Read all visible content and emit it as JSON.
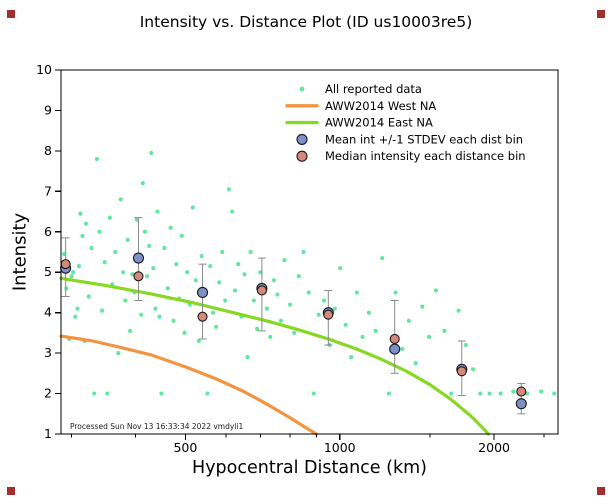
{
  "footer": "Processed Sun Nov 13 16:33:34 2022 vmdyli1",
  "colors": {
    "scatter": "#62e7a1",
    "west": "#f29440",
    "east": "#86d822",
    "mean": "#7e90c8",
    "median": "#d4897c",
    "errbar": "#8a8a8a",
    "axis": "#000000",
    "corner": "#a03030"
  },
  "chart_data": {
    "type": "scatter",
    "title": "Intensity vs. Distance Plot (ID us10003re5)",
    "xlabel": "Hypocentral Distance (km)",
    "ylabel": "Intensity",
    "xscale": "log",
    "yscale": "linear",
    "xlim": [
      286,
      2665
    ],
    "ylim": [
      1,
      10
    ],
    "xticks": [
      {
        "value": 500,
        "label": "500"
      },
      {
        "value": 1000,
        "label": "1000"
      },
      {
        "value": 2000,
        "label": "2000"
      }
    ],
    "xticks_minor": [
      300,
      400,
      600,
      700,
      800,
      900,
      1500,
      2500
    ],
    "yticks": [
      1,
      2,
      3,
      4,
      5,
      6,
      7,
      8,
      9,
      10
    ],
    "grid": false,
    "legend_position": "upper center",
    "series": [
      {
        "name": "All reported data",
        "type": "scatter",
        "marker": "dot",
        "color_key": "scatter",
        "points": [
          [
            290,
            5.45
          ],
          [
            293,
            4.6
          ],
          [
            297,
            3.35
          ],
          [
            300,
            4.9
          ],
          [
            302,
            5.0
          ],
          [
            305,
            3.9
          ],
          [
            308,
            4.1
          ],
          [
            310,
            5.15
          ],
          [
            312,
            6.45
          ],
          [
            315,
            5.9
          ],
          [
            318,
            3.3
          ],
          [
            320,
            6.2
          ],
          [
            324,
            4.4
          ],
          [
            328,
            5.6
          ],
          [
            332,
            2.0
          ],
          [
            336,
            7.8
          ],
          [
            340,
            6.0
          ],
          [
            344,
            4.05
          ],
          [
            348,
            5.25
          ],
          [
            352,
            2.0
          ],
          [
            356,
            6.35
          ],
          [
            360,
            4.7
          ],
          [
            365,
            5.5
          ],
          [
            370,
            3.0
          ],
          [
            374,
            6.8
          ],
          [
            378,
            5.0
          ],
          [
            382,
            4.3
          ],
          [
            386,
            5.8
          ],
          [
            390,
            3.55
          ],
          [
            394,
            4.95
          ],
          [
            398,
            4.5
          ],
          [
            402,
            6.3
          ],
          [
            406,
            5.3
          ],
          [
            410,
            3.95
          ],
          [
            413,
            7.2
          ],
          [
            417,
            6.0
          ],
          [
            421,
            4.9
          ],
          [
            425,
            5.65
          ],
          [
            429,
            7.95
          ],
          [
            433,
            5.1
          ],
          [
            437,
            4.1
          ],
          [
            441,
            6.5
          ],
          [
            445,
            3.9
          ],
          [
            449,
            2.0
          ],
          [
            455,
            5.6
          ],
          [
            462,
            4.6
          ],
          [
            468,
            6.1
          ],
          [
            474,
            3.8
          ],
          [
            480,
            5.2
          ],
          [
            486,
            4.35
          ],
          [
            492,
            5.9
          ],
          [
            498,
            3.5
          ],
          [
            504,
            5.0
          ],
          [
            510,
            4.2
          ],
          [
            517,
            6.6
          ],
          [
            524,
            4.8
          ],
          [
            531,
            3.3
          ],
          [
            538,
            5.4
          ],
          [
            545,
            4.45
          ],
          [
            552,
            2.0
          ],
          [
            559,
            5.15
          ],
          [
            566,
            4.0
          ],
          [
            574,
            3.65
          ],
          [
            582,
            4.75
          ],
          [
            590,
            5.5
          ],
          [
            598,
            4.3
          ],
          [
            608,
            7.05
          ],
          [
            617,
            6.5
          ],
          [
            625,
            4.55
          ],
          [
            634,
            5.2
          ],
          [
            643,
            3.9
          ],
          [
            652,
            4.95
          ],
          [
            661,
            2.9
          ],
          [
            670,
            5.5
          ],
          [
            680,
            4.3
          ],
          [
            690,
            3.6
          ],
          [
            700,
            5.0
          ],
          [
            710,
            4.6
          ],
          [
            721,
            4.1
          ],
          [
            732,
            3.4
          ],
          [
            744,
            4.8
          ],
          [
            756,
            4.45
          ],
          [
            768,
            3.8
          ],
          [
            780,
            5.3
          ],
          [
            800,
            4.2
          ],
          [
            815,
            3.5
          ],
          [
            832,
            4.9
          ],
          [
            850,
            5.5
          ],
          [
            870,
            4.5
          ],
          [
            890,
            2.0
          ],
          [
            910,
            3.95
          ],
          [
            932,
            4.3
          ],
          [
            955,
            3.2
          ],
          [
            978,
            4.1
          ],
          [
            1002,
            5.1
          ],
          [
            1027,
            3.7
          ],
          [
            1053,
            2.9
          ],
          [
            1080,
            4.5
          ],
          [
            1108,
            3.4
          ],
          [
            1140,
            4.0
          ],
          [
            1175,
            3.55
          ],
          [
            1210,
            5.35
          ],
          [
            1247,
            2.0
          ],
          [
            1285,
            4.5
          ],
          [
            1324,
            3.1
          ],
          [
            1364,
            3.8
          ],
          [
            1406,
            2.75
          ],
          [
            1449,
            4.15
          ],
          [
            1493,
            3.4
          ],
          [
            1540,
            4.55
          ],
          [
            1600,
            3.55
          ],
          [
            1650,
            2.0
          ],
          [
            1705,
            4.05
          ],
          [
            1762,
            3.2
          ],
          [
            1820,
            2.6
          ],
          [
            1880,
            2.0
          ],
          [
            1960,
            2.0
          ],
          [
            2060,
            2.0
          ],
          [
            2180,
            2.05
          ],
          [
            2320,
            2.0
          ],
          [
            2470,
            2.05
          ],
          [
            2620,
            2.0
          ]
        ]
      },
      {
        "name": "AWW2014 West NA",
        "type": "line",
        "color_key": "west",
        "points": [
          [
            286,
            3.42
          ],
          [
            330,
            3.3
          ],
          [
            380,
            3.12
          ],
          [
            430,
            2.95
          ],
          [
            500,
            2.66
          ],
          [
            570,
            2.38
          ],
          [
            650,
            2.05
          ],
          [
            730,
            1.7
          ],
          [
            800,
            1.4
          ],
          [
            860,
            1.15
          ],
          [
            900,
            1.0
          ]
        ]
      },
      {
        "name": "AWW2014 East NA",
        "type": "line",
        "color_key": "east",
        "points": [
          [
            286,
            4.85
          ],
          [
            350,
            4.67
          ],
          [
            430,
            4.46
          ],
          [
            520,
            4.24
          ],
          [
            620,
            4.0
          ],
          [
            720,
            3.8
          ],
          [
            830,
            3.58
          ],
          [
            950,
            3.35
          ],
          [
            1080,
            3.1
          ],
          [
            1200,
            2.86
          ],
          [
            1350,
            2.55
          ],
          [
            1500,
            2.22
          ],
          [
            1650,
            1.85
          ],
          [
            1800,
            1.45
          ],
          [
            1900,
            1.15
          ],
          [
            1950,
            1.0
          ]
        ]
      },
      {
        "name": "Mean int +/-1 STDEV each dist bin",
        "type": "scatter_errorbar",
        "marker": "circle",
        "color_key": "mean",
        "points": [
          {
            "x": 292,
            "y": 5.1,
            "ylo": 4.4,
            "yhi": 5.85
          },
          {
            "x": 405,
            "y": 5.35,
            "ylo": 4.3,
            "yhi": 6.35
          },
          {
            "x": 540,
            "y": 4.5,
            "ylo": 3.35,
            "yhi": 5.2
          },
          {
            "x": 705,
            "y": 4.6,
            "ylo": 3.55,
            "yhi": 5.35
          },
          {
            "x": 950,
            "y": 4.0,
            "ylo": 3.2,
            "yhi": 4.55
          },
          {
            "x": 1280,
            "y": 3.1,
            "ylo": 2.5,
            "yhi": 4.3
          },
          {
            "x": 1730,
            "y": 2.6,
            "ylo": 1.95,
            "yhi": 3.3
          },
          {
            "x": 2260,
            "y": 1.75,
            "ylo": 1.5,
            "yhi": 2.25
          }
        ]
      },
      {
        "name": "Median intensity each distance bin",
        "type": "scatter",
        "marker": "circle",
        "color_key": "median",
        "points": [
          [
            292,
            5.2
          ],
          [
            405,
            4.9
          ],
          [
            540,
            3.9
          ],
          [
            705,
            4.55
          ],
          [
            950,
            3.95
          ],
          [
            1280,
            3.35
          ],
          [
            1730,
            2.55
          ],
          [
            2260,
            2.05
          ]
        ]
      }
    ]
  }
}
